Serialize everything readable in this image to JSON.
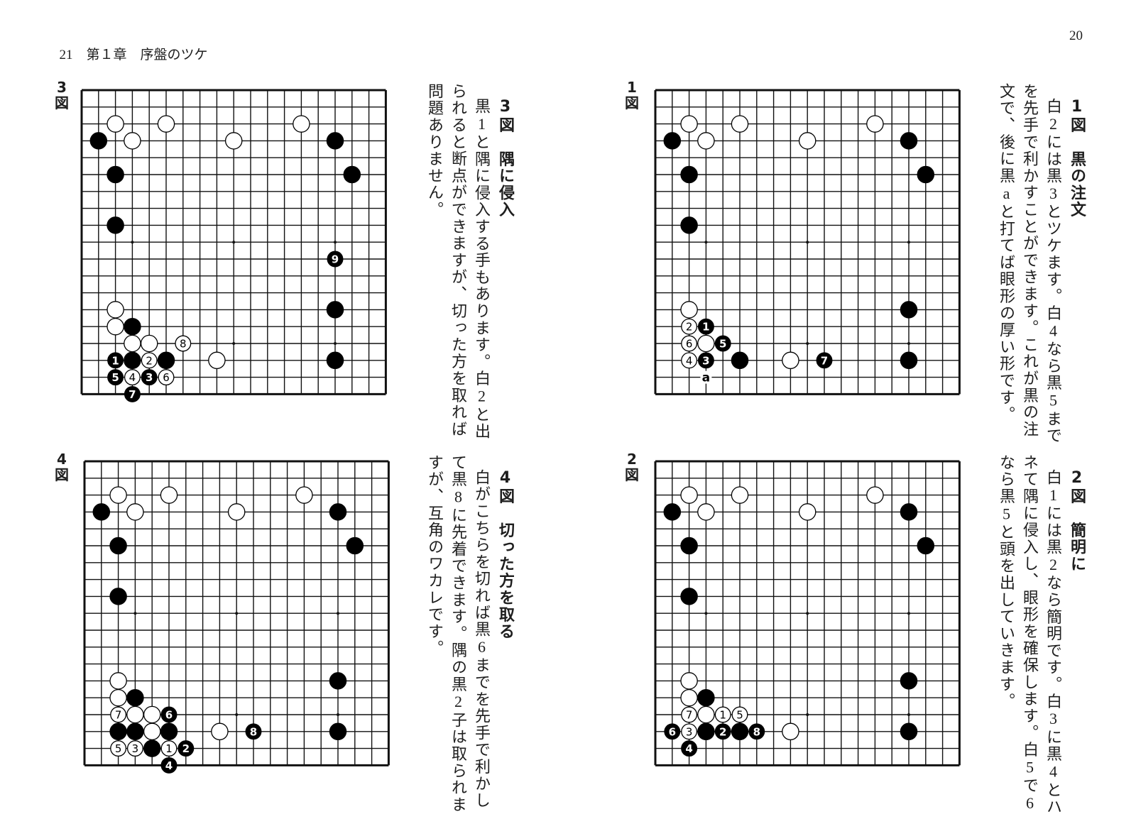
{
  "header": {
    "left_page_number": "21",
    "chapter": "第１章",
    "chapter_title": "序盤のツケ",
    "right_page_number": "20"
  },
  "figures": [
    {
      "id": "fig1",
      "label_number": "1",
      "label_suffix": "図",
      "heading": "1図　黒の注文",
      "lines": [
        "白2には黒3とツケます。白4なら黒5まで",
        "を先手で利かすことができます。これが黒の注",
        "文で、後に黒aと打てば眼形の厚い形です。"
      ],
      "stones": [
        {
          "c": "w",
          "x": 2,
          "y": 2
        },
        {
          "c": "w",
          "x": 5,
          "y": 2
        },
        {
          "c": "w",
          "x": 13,
          "y": 2
        },
        {
          "c": "w",
          "x": 3,
          "y": 3
        },
        {
          "c": "w",
          "x": 9,
          "y": 3
        },
        {
          "c": "w",
          "x": 2,
          "y": 13
        },
        {
          "c": "w",
          "x": 3,
          "y": 15
        },
        {
          "c": "w",
          "x": 8,
          "y": 16
        },
        {
          "c": "b",
          "x": 1,
          "y": 3
        },
        {
          "c": "b",
          "x": 15,
          "y": 3
        },
        {
          "c": "b",
          "x": 2,
          "y": 5
        },
        {
          "c": "b",
          "x": 16,
          "y": 5
        },
        {
          "c": "b",
          "x": 2,
          "y": 8
        },
        {
          "c": "b",
          "x": 15,
          "y": 13
        },
        {
          "c": "b",
          "x": 5,
          "y": 16
        },
        {
          "c": "b",
          "x": 15,
          "y": 16
        },
        {
          "c": "b",
          "x": 3,
          "y": 14,
          "n": "1"
        },
        {
          "c": "w",
          "x": 2,
          "y": 14,
          "n": "2"
        },
        {
          "c": "b",
          "x": 3,
          "y": 16,
          "n": "3"
        },
        {
          "c": "w",
          "x": 2,
          "y": 16,
          "n": "4"
        },
        {
          "c": "b",
          "x": 4,
          "y": 15,
          "n": "5"
        },
        {
          "c": "w",
          "x": 2,
          "y": 15,
          "n": "6"
        },
        {
          "c": "b",
          "x": 10,
          "y": 16,
          "n": "7"
        }
      ],
      "marks": [
        {
          "x": 3,
          "y": 17,
          "t": "a"
        }
      ]
    },
    {
      "id": "fig2",
      "label_number": "2",
      "label_suffix": "図",
      "heading": "2図　簡明に",
      "lines": [
        "白1には黒2なら簡明です。白3に黒4とハ",
        "ネて隅に侵入し、眼形を確保します。白5で6",
        "なら黒5と頭を出していきます。"
      ],
      "stones": [
        {
          "c": "w",
          "x": 2,
          "y": 2
        },
        {
          "c": "w",
          "x": 5,
          "y": 2
        },
        {
          "c": "w",
          "x": 13,
          "y": 2
        },
        {
          "c": "w",
          "x": 3,
          "y": 3
        },
        {
          "c": "w",
          "x": 9,
          "y": 3
        },
        {
          "c": "w",
          "x": 2,
          "y": 13
        },
        {
          "c": "w",
          "x": 2,
          "y": 14
        },
        {
          "c": "w",
          "x": 3,
          "y": 15
        },
        {
          "c": "w",
          "x": 8,
          "y": 16
        },
        {
          "c": "b",
          "x": 1,
          "y": 3
        },
        {
          "c": "b",
          "x": 15,
          "y": 3
        },
        {
          "c": "b",
          "x": 2,
          "y": 5
        },
        {
          "c": "b",
          "x": 16,
          "y": 5
        },
        {
          "c": "b",
          "x": 2,
          "y": 8
        },
        {
          "c": "b",
          "x": 15,
          "y": 13
        },
        {
          "c": "b",
          "x": 3,
          "y": 14
        },
        {
          "c": "b",
          "x": 3,
          "y": 16
        },
        {
          "c": "b",
          "x": 5,
          "y": 16
        },
        {
          "c": "b",
          "x": 15,
          "y": 16
        },
        {
          "c": "w",
          "x": 4,
          "y": 15,
          "n": "1"
        },
        {
          "c": "b",
          "x": 4,
          "y": 16,
          "n": "2"
        },
        {
          "c": "w",
          "x": 2,
          "y": 16,
          "n": "3"
        },
        {
          "c": "b",
          "x": 2,
          "y": 17,
          "n": "4"
        },
        {
          "c": "w",
          "x": 5,
          "y": 15,
          "n": "5"
        },
        {
          "c": "b",
          "x": 1,
          "y": 16,
          "n": "6"
        },
        {
          "c": "w",
          "x": 2,
          "y": 15,
          "n": "7"
        },
        {
          "c": "b",
          "x": 6,
          "y": 16,
          "n": "8"
        }
      ],
      "marks": []
    },
    {
      "id": "fig3",
      "label_number": "3",
      "label_suffix": "図",
      "heading": "3図　隅に侵入",
      "lines": [
        "黒1と隅に侵入する手もあります。白2と出",
        "られると断点ができますが、切った方を取れば",
        "問題ありません。"
      ],
      "stones": [
        {
          "c": "w",
          "x": 2,
          "y": 2
        },
        {
          "c": "w",
          "x": 5,
          "y": 2
        },
        {
          "c": "w",
          "x": 13,
          "y": 2
        },
        {
          "c": "w",
          "x": 3,
          "y": 3
        },
        {
          "c": "w",
          "x": 9,
          "y": 3
        },
        {
          "c": "w",
          "x": 2,
          "y": 13
        },
        {
          "c": "w",
          "x": 2,
          "y": 14
        },
        {
          "c": "w",
          "x": 3,
          "y": 15
        },
        {
          "c": "w",
          "x": 4,
          "y": 15
        },
        {
          "c": "w",
          "x": 8,
          "y": 16
        },
        {
          "c": "b",
          "x": 1,
          "y": 3
        },
        {
          "c": "b",
          "x": 15,
          "y": 3
        },
        {
          "c": "b",
          "x": 2,
          "y": 5
        },
        {
          "c": "b",
          "x": 16,
          "y": 5
        },
        {
          "c": "b",
          "x": 2,
          "y": 8
        },
        {
          "c": "b",
          "x": 15,
          "y": 13
        },
        {
          "c": "b",
          "x": 3,
          "y": 14
        },
        {
          "c": "b",
          "x": 3,
          "y": 16
        },
        {
          "c": "b",
          "x": 5,
          "y": 16
        },
        {
          "c": "b",
          "x": 15,
          "y": 16
        },
        {
          "c": "b",
          "x": 2,
          "y": 16,
          "n": "1"
        },
        {
          "c": "w",
          "x": 4,
          "y": 16,
          "n": "2"
        },
        {
          "c": "b",
          "x": 4,
          "y": 17,
          "n": "3"
        },
        {
          "c": "w",
          "x": 3,
          "y": 17,
          "n": "4"
        },
        {
          "c": "b",
          "x": 2,
          "y": 17,
          "n": "5"
        },
        {
          "c": "w",
          "x": 5,
          "y": 17,
          "n": "6"
        },
        {
          "c": "b",
          "x": 3,
          "y": 18,
          "n": "7"
        },
        {
          "c": "w",
          "x": 6,
          "y": 15,
          "n": "8"
        },
        {
          "c": "b",
          "x": 15,
          "y": 10,
          "n": "9"
        }
      ],
      "marks": []
    },
    {
      "id": "fig4",
      "label_number": "4",
      "label_suffix": "図",
      "heading": "4図　切った方を取る",
      "lines": [
        "白がこちらを切れば黒6までを先手で利かし",
        "て黒8に先着できます。隅の黒2子は取られま",
        "すが、互角のワカレです。"
      ],
      "stones": [
        {
          "c": "w",
          "x": 2,
          "y": 2
        },
        {
          "c": "w",
          "x": 5,
          "y": 2
        },
        {
          "c": "w",
          "x": 13,
          "y": 2
        },
        {
          "c": "w",
          "x": 3,
          "y": 3
        },
        {
          "c": "w",
          "x": 9,
          "y": 3
        },
        {
          "c": "w",
          "x": 2,
          "y": 13
        },
        {
          "c": "w",
          "x": 2,
          "y": 14
        },
        {
          "c": "w",
          "x": 3,
          "y": 15
        },
        {
          "c": "w",
          "x": 4,
          "y": 15
        },
        {
          "c": "w",
          "x": 4,
          "y": 16
        },
        {
          "c": "w",
          "x": 8,
          "y": 16
        },
        {
          "c": "b",
          "x": 1,
          "y": 3
        },
        {
          "c": "b",
          "x": 15,
          "y": 3
        },
        {
          "c": "b",
          "x": 2,
          "y": 5
        },
        {
          "c": "b",
          "x": 16,
          "y": 5
        },
        {
          "c": "b",
          "x": 2,
          "y": 8
        },
        {
          "c": "b",
          "x": 15,
          "y": 13
        },
        {
          "c": "b",
          "x": 3,
          "y": 14
        },
        {
          "c": "b",
          "x": 2,
          "y": 16
        },
        {
          "c": "b",
          "x": 3,
          "y": 16
        },
        {
          "c": "b",
          "x": 5,
          "y": 16
        },
        {
          "c": "b",
          "x": 4,
          "y": 17
        },
        {
          "c": "b",
          "x": 15,
          "y": 16
        },
        {
          "c": "w",
          "x": 5,
          "y": 17,
          "n": "1"
        },
        {
          "c": "b",
          "x": 6,
          "y": 17,
          "n": "2"
        },
        {
          "c": "w",
          "x": 3,
          "y": 17,
          "n": "3"
        },
        {
          "c": "b",
          "x": 5,
          "y": 18,
          "n": "4"
        },
        {
          "c": "w",
          "x": 2,
          "y": 17,
          "n": "5"
        },
        {
          "c": "b",
          "x": 5,
          "y": 15,
          "n": "6"
        },
        {
          "c": "w",
          "x": 2,
          "y": 15,
          "n": "7"
        },
        {
          "c": "b",
          "x": 10,
          "y": 16,
          "n": "8"
        }
      ],
      "marks": []
    }
  ]
}
